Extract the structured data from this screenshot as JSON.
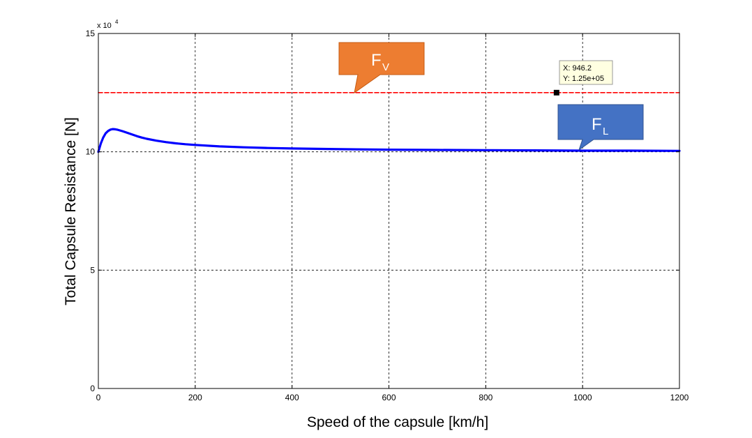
{
  "chart_data": {
    "type": "line",
    "title": "",
    "xlabel": "Speed of the capsule [km/h]",
    "ylabel": "Total Capsule Resistance [N]",
    "xlim": [
      0,
      1200
    ],
    "ylim": [
      0,
      15
    ],
    "y_exponent_label": "x 10",
    "y_exponent_power": "4",
    "x_ticks": [
      "0",
      "200",
      "400",
      "600",
      "800",
      "1000",
      "1200"
    ],
    "y_ticks": [
      "0",
      "5",
      "10",
      "15"
    ],
    "grid": true,
    "grid_style": "dotted",
    "series": [
      {
        "color": "#0000ff",
        "x": [
          0,
          5,
          10,
          15,
          20,
          25,
          30,
          35,
          40,
          50,
          60,
          70,
          80,
          90,
          100,
          120,
          140,
          160,
          180,
          200,
          250,
          300,
          350,
          400,
          500,
          600,
          700,
          800,
          900,
          1000,
          1100,
          1200
        ],
        "y": [
          10.0,
          10.35,
          10.6,
          10.78,
          10.88,
          10.94,
          10.96,
          10.95,
          10.93,
          10.87,
          10.8,
          10.73,
          10.66,
          10.6,
          10.55,
          10.47,
          10.41,
          10.36,
          10.32,
          10.29,
          10.23,
          10.19,
          10.16,
          10.14,
          10.11,
          10.09,
          10.08,
          10.07,
          10.06,
          10.05,
          10.05,
          10.04
        ]
      },
      {
        "color": "#ff0000",
        "style": "dashed",
        "x": [
          0,
          1200
        ],
        "y": [
          12.5,
          12.5
        ]
      }
    ],
    "datatip": {
      "x": 946.2,
      "y": 12.5,
      "line1": "X: 946.2",
      "line2": "Y: 1.25e+05"
    },
    "callouts": [
      {
        "main": "F",
        "sub": "V",
        "color": "#ed7d31"
      },
      {
        "main": "F",
        "sub": "L",
        "color": "#4472c4"
      }
    ]
  }
}
